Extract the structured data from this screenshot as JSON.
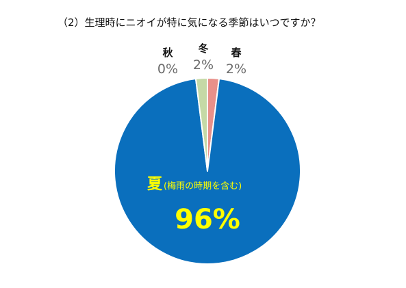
{
  "chart_data": {
    "type": "pie",
    "title": "（2）生理時にニオイが特に気になる季節はいつですか？",
    "slices": [
      {
        "label": "春",
        "note": "",
        "value": 2,
        "value_label": "2%",
        "color": "#e8908a"
      },
      {
        "label": "夏",
        "note": "(梅雨の時期を含む)",
        "value": 96,
        "value_label": "96%",
        "color": "#0a6fbd"
      },
      {
        "label": "秋",
        "note": "",
        "value": 0,
        "value_label": "0%",
        "color": "#e07a5a"
      },
      {
        "label": "冬",
        "note": "",
        "value": 2,
        "value_label": "2%",
        "color": "#c5d9a6"
      }
    ],
    "start_angle_deg": 0,
    "direction": "clockwise",
    "slice_stroke": "#ffffff"
  }
}
